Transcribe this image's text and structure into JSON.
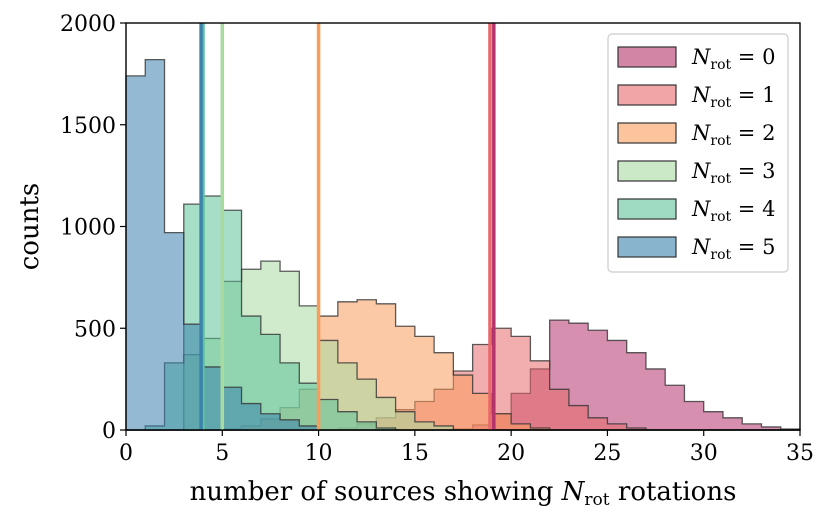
{
  "chart_data": {
    "type": "histogram",
    "title": "",
    "xlabel": {
      "prefix": "number of sources showing ",
      "symbol": "N",
      "subscript": "rot",
      "suffix": " rotations"
    },
    "ylabel": "counts",
    "xlim": [
      0,
      35
    ],
    "ylim": [
      0,
      2000
    ],
    "xticks": [
      0,
      5,
      10,
      15,
      20,
      25,
      30,
      35
    ],
    "yticks": [
      0,
      500,
      1000,
      1500,
      2000
    ],
    "bin_width": 1,
    "grid": false,
    "legend_position": "top-right",
    "series": [
      {
        "name": "N_rot=0",
        "label_symbol": "N",
        "label_sub": "rot",
        "label_rhs": "= 0",
        "color": "#b5336b",
        "mean": 19.1,
        "values": [
          0,
          0,
          0,
          0,
          0,
          0,
          0,
          0,
          0,
          0,
          0,
          0,
          0,
          0,
          0,
          0,
          0,
          5,
          25,
          80,
          180,
          300,
          540,
          525,
          490,
          440,
          380,
          300,
          220,
          140,
          90,
          60,
          30,
          15,
          5
        ]
      },
      {
        "name": "N_rot=1",
        "label_symbol": "N",
        "label_sub": "rot",
        "label_rhs": "= 1",
        "color": "#e8696b",
        "mean": 18.9,
        "values": [
          0,
          0,
          0,
          0,
          0,
          0,
          0,
          0,
          0,
          0,
          0,
          10,
          30,
          60,
          100,
          140,
          200,
          290,
          420,
          500,
          460,
          340,
          200,
          120,
          60,
          30,
          10,
          0,
          0,
          0,
          0,
          0,
          0,
          0,
          0
        ]
      },
      {
        "name": "N_rot=2",
        "label_symbol": "N",
        "label_sub": "rot",
        "label_rhs": "= 2",
        "color": "#f99d5c",
        "mean": 10.0,
        "values": [
          0,
          0,
          0,
          0,
          0,
          5,
          20,
          55,
          110,
          200,
          560,
          630,
          640,
          620,
          510,
          460,
          380,
          270,
          180,
          80,
          30,
          10,
          0,
          0,
          0,
          0,
          0,
          0,
          0,
          0,
          0,
          0,
          0,
          0,
          0
        ]
      },
      {
        "name": "N_rot=3",
        "label_symbol": "N",
        "label_sub": "rot",
        "label_rhs": "= 3",
        "color": "#a8dba0",
        "mean": 5.0,
        "values": [
          0,
          0,
          0,
          370,
          450,
          730,
          790,
          830,
          780,
          610,
          440,
          330,
          250,
          160,
          90,
          40,
          20,
          0,
          0,
          0,
          0,
          0,
          0,
          0,
          0,
          0,
          0,
          0,
          0,
          0,
          0,
          0,
          0,
          0,
          0
        ]
      },
      {
        "name": "N_rot=4",
        "label_symbol": "N",
        "label_sub": "rot",
        "label_rhs": "= 4",
        "color": "#5fc29a",
        "mean": 4.0,
        "values": [
          0,
          20,
          330,
          1110,
          1150,
          1080,
          560,
          470,
          330,
          230,
          150,
          90,
          40,
          10,
          0,
          0,
          0,
          0,
          0,
          0,
          0,
          0,
          0,
          0,
          0,
          0,
          0,
          0,
          0,
          0,
          0,
          0,
          0,
          0,
          0
        ]
      },
      {
        "name": "N_rot=5",
        "label_symbol": "N",
        "label_sub": "rot",
        "label_rhs": "= 5",
        "color": "#3b82ad",
        "mean": 3.9,
        "values": [
          1740,
          1820,
          970,
          520,
          310,
          210,
          130,
          80,
          50,
          20,
          0,
          0,
          0,
          0,
          0,
          0,
          0,
          0,
          0,
          0,
          0,
          0,
          0,
          0,
          0,
          0,
          0,
          0,
          0,
          0,
          0,
          0,
          0,
          0,
          0
        ]
      }
    ]
  }
}
